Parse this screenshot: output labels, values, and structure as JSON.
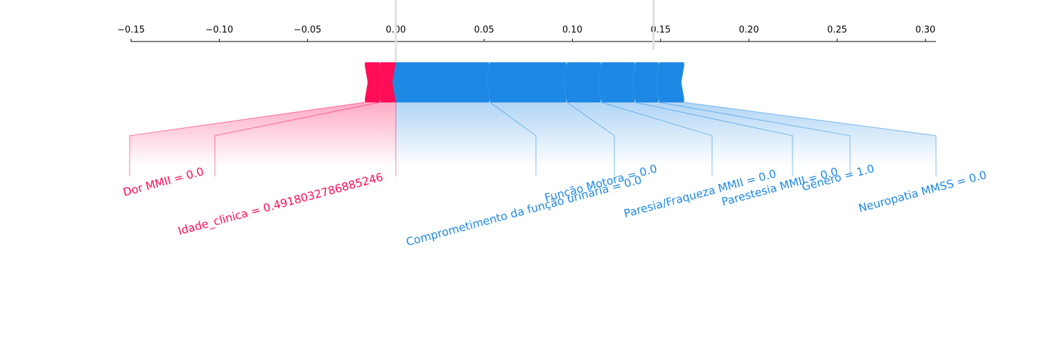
{
  "chart_data": {
    "type": "force",
    "output_value": {
      "value": 0,
      "label": "0.00"
    },
    "base_value": 0.146,
    "xlim": [
      -0.15,
      0.306
    ],
    "xticks": [
      {
        "value": -0.15,
        "label": "−0.15"
      },
      {
        "value": -0.1,
        "label": "−0.10"
      },
      {
        "value": -0.05,
        "label": "−0.05"
      },
      {
        "value": 0,
        "label": "0.00"
      },
      0.05,
      {
        "value": 0.1,
        "label": "0.10"
      },
      0.15,
      {
        "value": 0.2,
        "label": "0.20"
      },
      0.25,
      {
        "value": 0.3,
        "label": "0.30"
      }
    ],
    "positive_color": "#ff0d57",
    "negative_color": "#1e88e5",
    "positive": [
      {
        "name": "Idade_clinica = 0.4918032786885246",
        "value": 0.0094
      },
      {
        "name": "Dor MMII = 0.0",
        "value": 0.0085
      }
    ],
    "negative": [
      {
        "name": "Comprometimento da função urinária = 0.0",
        "value": 0.0534
      },
      {
        "name": "Função Motora = 0.0",
        "value": 0.0436
      },
      {
        "name": "Paresia/Fraqueza MMII = 0.0",
        "value": 0.0196
      },
      {
        "name": "Parestesia MMII = 0.0",
        "value": 0.0192
      },
      {
        "name": "Gênero = 1.0",
        "value": 0.0134
      },
      {
        "name": "Neuropatia MMSS = 0.0",
        "value": 0.0145
      }
    ]
  }
}
